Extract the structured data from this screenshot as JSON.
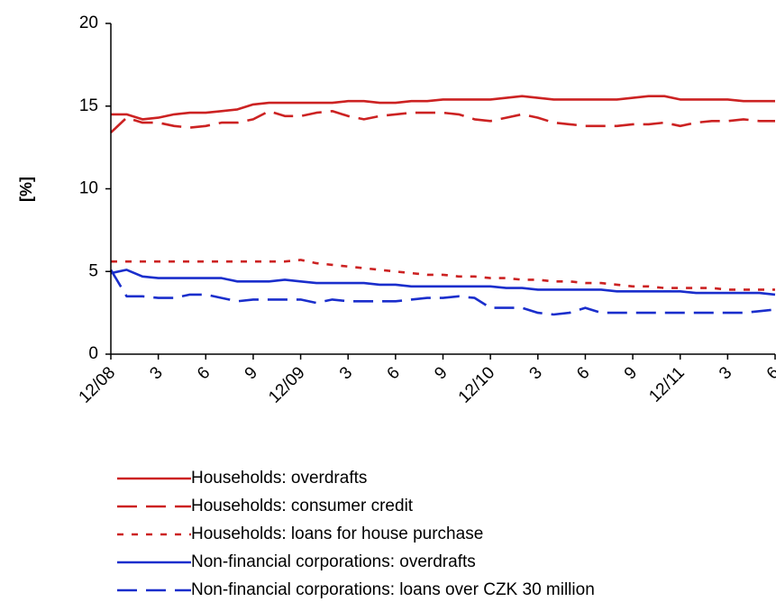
{
  "chart_data": {
    "type": "line",
    "ylabel": "[%]",
    "ylim": [
      0,
      20
    ],
    "yticks": [
      0,
      5,
      10,
      15,
      20
    ],
    "x_tick_labels": [
      "12/08",
      "3",
      "6",
      "9",
      "12/09",
      "3",
      "6",
      "9",
      "12/10",
      "3",
      "6",
      "9",
      "12/11",
      "3",
      "6"
    ],
    "x": [
      "12/08",
      "1/09",
      "2/09",
      "3/09",
      "4/09",
      "5/09",
      "6/09",
      "7/09",
      "8/09",
      "9/09",
      "10/09",
      "11/09",
      "12/09",
      "1/10",
      "2/10",
      "3/10",
      "4/10",
      "5/10",
      "6/10",
      "7/10",
      "8/10",
      "9/10",
      "10/10",
      "11/10",
      "12/10",
      "1/11",
      "2/11",
      "3/11",
      "4/11",
      "5/11",
      "6/11",
      "7/11",
      "8/11",
      "9/11",
      "10/11",
      "11/11",
      "12/11",
      "1/12",
      "2/12",
      "3/12",
      "4/12",
      "5/12",
      "6/12"
    ],
    "grid": false,
    "legend_position": "bottom",
    "series": [
      {
        "name": "Households: overdrafts",
        "color": "#cc2222",
        "dash": "solid",
        "values": [
          14.5,
          14.5,
          14.2,
          14.3,
          14.5,
          14.6,
          14.6,
          14.7,
          14.8,
          15.1,
          15.2,
          15.2,
          15.2,
          15.2,
          15.2,
          15.3,
          15.3,
          15.2,
          15.2,
          15.3,
          15.3,
          15.4,
          15.4,
          15.4,
          15.4,
          15.5,
          15.6,
          15.5,
          15.4,
          15.4,
          15.4,
          15.4,
          15.4,
          15.5,
          15.6,
          15.6,
          15.4,
          15.4,
          15.4,
          15.4,
          15.3,
          15.3,
          15.3
        ]
      },
      {
        "name": "Households: consumer credit",
        "color": "#cc2222",
        "dash": "dashed",
        "values": [
          13.4,
          14.3,
          14.0,
          14.0,
          13.8,
          13.7,
          13.8,
          14.0,
          14.0,
          14.2,
          14.7,
          14.4,
          14.4,
          14.6,
          14.7,
          14.4,
          14.2,
          14.4,
          14.5,
          14.6,
          14.6,
          14.6,
          14.5,
          14.2,
          14.1,
          14.3,
          14.5,
          14.3,
          14.0,
          13.9,
          13.8,
          13.8,
          13.8,
          13.9,
          13.9,
          14.0,
          13.8,
          14.0,
          14.1,
          14.1,
          14.2,
          14.1,
          14.1
        ]
      },
      {
        "name": "Households: loans for house purchase",
        "color": "#cc2222",
        "dash": "dotted",
        "values": [
          5.6,
          5.6,
          5.6,
          5.6,
          5.6,
          5.6,
          5.6,
          5.6,
          5.6,
          5.6,
          5.6,
          5.6,
          5.7,
          5.5,
          5.4,
          5.3,
          5.2,
          5.1,
          5.0,
          4.9,
          4.8,
          4.8,
          4.7,
          4.7,
          4.6,
          4.6,
          4.5,
          4.5,
          4.4,
          4.4,
          4.3,
          4.3,
          4.2,
          4.1,
          4.1,
          4.0,
          4.0,
          4.0,
          4.0,
          3.9,
          3.9,
          3.9,
          3.9
        ]
      },
      {
        "name": "Non-financial corporations: overdrafts",
        "color": "#1a2ecc",
        "dash": "solid",
        "values": [
          4.9,
          5.1,
          4.7,
          4.6,
          4.6,
          4.6,
          4.6,
          4.6,
          4.4,
          4.4,
          4.4,
          4.5,
          4.4,
          4.3,
          4.3,
          4.3,
          4.3,
          4.2,
          4.2,
          4.1,
          4.1,
          4.1,
          4.1,
          4.1,
          4.1,
          4.0,
          4.0,
          3.9,
          3.9,
          3.9,
          3.9,
          3.9,
          3.8,
          3.8,
          3.8,
          3.8,
          3.8,
          3.7,
          3.7,
          3.7,
          3.7,
          3.7,
          3.6
        ]
      },
      {
        "name": "Non-financial corporations: loans over CZK 30 million",
        "color": "#1a2ecc",
        "dash": "dashed",
        "values": [
          5.1,
          3.5,
          3.5,
          3.4,
          3.4,
          3.6,
          3.6,
          3.4,
          3.2,
          3.3,
          3.3,
          3.3,
          3.3,
          3.1,
          3.3,
          3.2,
          3.2,
          3.2,
          3.2,
          3.3,
          3.4,
          3.4,
          3.5,
          3.4,
          2.8,
          2.8,
          2.8,
          2.5,
          2.4,
          2.5,
          2.8,
          2.5,
          2.5,
          2.5,
          2.5,
          2.5,
          2.5,
          2.5,
          2.5,
          2.5,
          2.5,
          2.6,
          2.7
        ]
      }
    ]
  }
}
